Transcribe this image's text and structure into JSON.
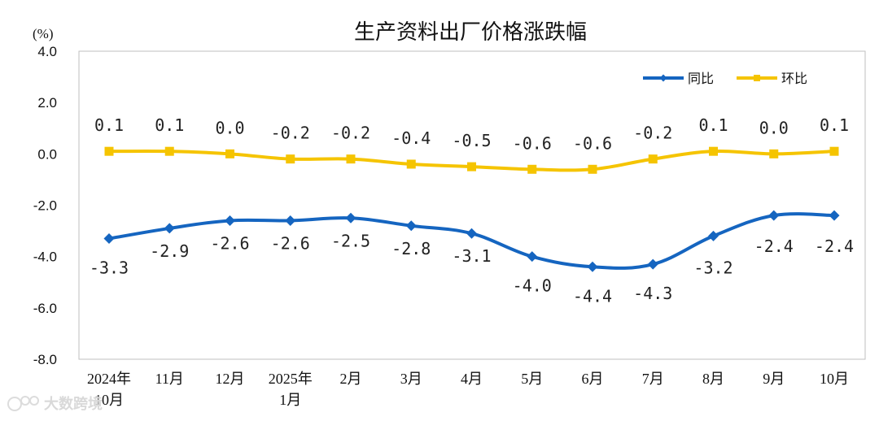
{
  "chart_data": {
    "type": "line",
    "title": "生产资料出厂价格涨跌幅",
    "unit_label": "(%)",
    "categories": [
      [
        "2024年",
        "10月"
      ],
      [
        "11月"
      ],
      [
        "12月"
      ],
      [
        "2025年",
        "1月"
      ],
      [
        "2月"
      ],
      [
        "3月"
      ],
      [
        "4月"
      ],
      [
        "5月"
      ],
      [
        "6月"
      ],
      [
        "7月"
      ],
      [
        "8月"
      ],
      [
        "9月"
      ],
      [
        "10月"
      ]
    ],
    "yticks": [
      "4.0",
      "2.0",
      "0.0",
      "-2.0",
      "-4.0",
      "-6.0",
      "-8.0"
    ],
    "ylim": [
      -8,
      4
    ],
    "series": [
      {
        "name": "同比",
        "color": "#1565c0",
        "marker": "diamond",
        "values": [
          -3.3,
          -2.9,
          -2.6,
          -2.6,
          -2.5,
          -2.8,
          -3.1,
          -4.0,
          -4.4,
          -4.3,
          -3.2,
          -2.4,
          -2.4
        ],
        "labels": [
          "-3.3",
          "-2.9",
          "-2.6",
          "-2.6",
          "-2.5",
          "-2.8",
          "-3.1",
          "-4.0",
          "-4.4",
          "-4.3",
          "-3.2",
          "-2.4",
          "-2.4"
        ]
      },
      {
        "name": "环比",
        "color": "#f5c400",
        "marker": "square",
        "values": [
          0.1,
          0.1,
          0.0,
          -0.2,
          -0.2,
          -0.4,
          -0.5,
          -0.6,
          -0.6,
          -0.2,
          0.1,
          0.0,
          0.1
        ],
        "labels": [
          "0.1",
          "0.1",
          "0.0",
          "-0.2",
          "-0.2",
          "-0.4",
          "-0.5",
          "-0.6",
          "-0.6",
          "-0.2",
          "0.1",
          "0.0",
          "0.1"
        ]
      }
    ],
    "legend": {
      "position": "top-right"
    },
    "grid": false
  },
  "watermark": "大数跨境"
}
